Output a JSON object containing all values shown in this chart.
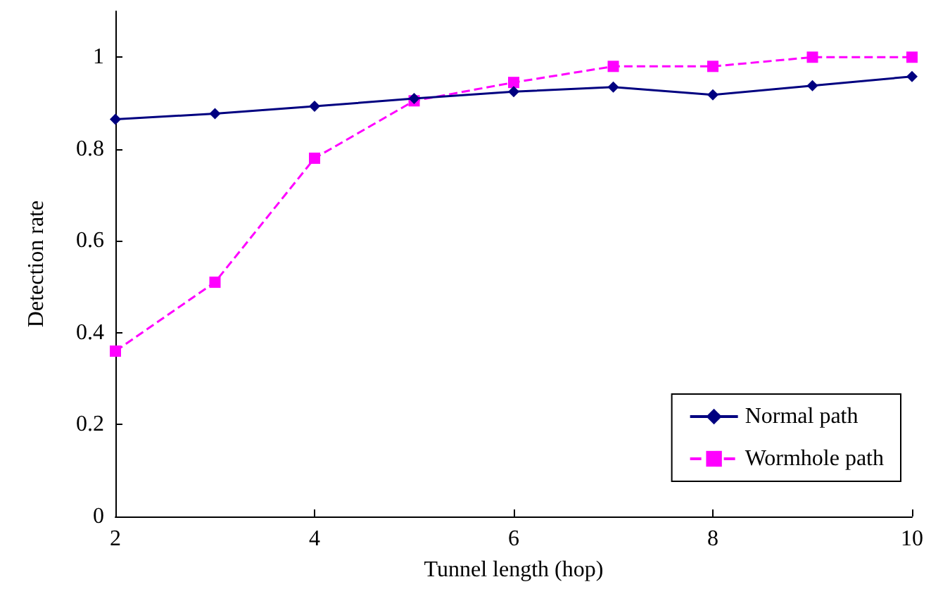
{
  "chart_data": {
    "type": "line",
    "xlabel": "Tunnel length (hop)",
    "ylabel": "Detection rate",
    "x": [
      2,
      3,
      4,
      5,
      6,
      7,
      8,
      9,
      10
    ],
    "series": [
      {
        "name": "Normal path",
        "color": "#000080",
        "marker": "diamond",
        "line_style": "solid",
        "values": [
          0.865,
          0.877,
          0.893,
          0.91,
          0.925,
          0.935,
          0.918,
          0.938,
          0.958
        ]
      },
      {
        "name": "Wormhole path",
        "color": "#ff00ff",
        "marker": "square",
        "line_style": "dashed",
        "values": [
          0.36,
          0.51,
          0.78,
          0.905,
          0.945,
          0.98,
          0.98,
          1.0,
          1.0
        ]
      }
    ],
    "xlim": [
      2,
      10
    ],
    "xticks": [
      2,
      4,
      6,
      8,
      10
    ],
    "ylim": [
      0,
      1.1
    ],
    "yticks": [
      0,
      0.2,
      0.4,
      0.6,
      0.8,
      1
    ],
    "grid": false,
    "legend": "bottom right"
  }
}
